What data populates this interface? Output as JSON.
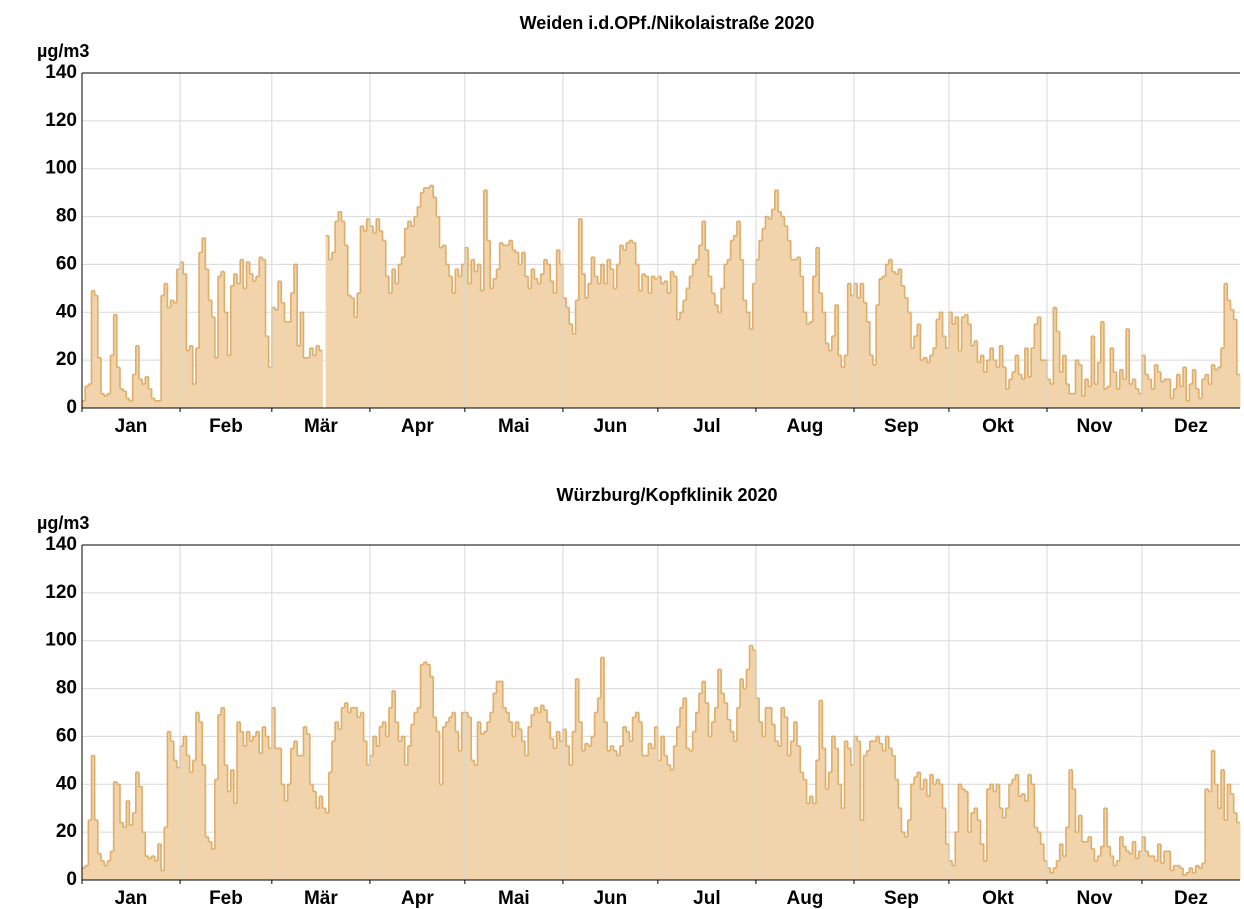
{
  "chart_data": [
    {
      "type": "step-area",
      "title": "Weiden i.d.OPf./Nikolaistraße 2020",
      "y_label": "µg/m3",
      "categories": [
        "Jan",
        "Feb",
        "Mär",
        "Apr",
        "Mai",
        "Jun",
        "Jul",
        "Aug",
        "Sep",
        "Okt",
        "Nov",
        "Dez"
      ],
      "values": [
        [
          3,
          9,
          10,
          49,
          47,
          21,
          6,
          5,
          6,
          22,
          39,
          17,
          8,
          7,
          4,
          3,
          14,
          26,
          12,
          10,
          13,
          8,
          4,
          3,
          3,
          47,
          52,
          42,
          45,
          44,
          58
        ],
        [
          61,
          56,
          24,
          26,
          10,
          25,
          65,
          71,
          58,
          45,
          38,
          21,
          55,
          57,
          40,
          22,
          51,
          56,
          52,
          62,
          50,
          61,
          56,
          53,
          55,
          63,
          62,
          30,
          17
        ],
        [
          42,
          41,
          53,
          44,
          36,
          36,
          48,
          60,
          26,
          40,
          21,
          21,
          25,
          22,
          26,
          24,
          null,
          72,
          62,
          65,
          78,
          82,
          78,
          68,
          47,
          46,
          38,
          48,
          76,
          74,
          79
        ],
        [
          76,
          73,
          79,
          74,
          70,
          55,
          48,
          58,
          52,
          60,
          63,
          75,
          78,
          76,
          80,
          84,
          90,
          92,
          92,
          93,
          88,
          80,
          67,
          68,
          60,
          55,
          48,
          58,
          55,
          60
        ],
        [
          67,
          52,
          62,
          57,
          60,
          49,
          91,
          70,
          50,
          54,
          58,
          69,
          68,
          68,
          70,
          66,
          65,
          60,
          65,
          55,
          50,
          58,
          54,
          52,
          56,
          62,
          60,
          53,
          48,
          66,
          60
        ],
        [
          46,
          42,
          35,
          31,
          45,
          79,
          56,
          46,
          52,
          63,
          55,
          52,
          60,
          52,
          62,
          58,
          50,
          60,
          68,
          66,
          69,
          70,
          69,
          60,
          49,
          56,
          55,
          48,
          55,
          54
        ],
        [
          55,
          52,
          53,
          48,
          57,
          55,
          37,
          40,
          45,
          50,
          55,
          60,
          62,
          68,
          78,
          66,
          55,
          48,
          43,
          40,
          50,
          60,
          62,
          70,
          72,
          78,
          62,
          45,
          40,
          33,
          52
        ],
        [
          62,
          70,
          75,
          80,
          79,
          83,
          91,
          82,
          80,
          76,
          70,
          62,
          62,
          63,
          55,
          40,
          35,
          36,
          55,
          67,
          48,
          40,
          27,
          24,
          30,
          43,
          22,
          17,
          22,
          52,
          47
        ],
        [
          52,
          46,
          52,
          44,
          36,
          22,
          18,
          43,
          54,
          55,
          60,
          62,
          57,
          56,
          58,
          51,
          46,
          40,
          25,
          30,
          35,
          20,
          21,
          19,
          22,
          25,
          37,
          40,
          30,
          25
        ],
        [
          40,
          35,
          38,
          24,
          38,
          39,
          35,
          26,
          28,
          19,
          22,
          15,
          20,
          25,
          20,
          17,
          26,
          17,
          8,
          12,
          15,
          22,
          14,
          12,
          25,
          13,
          25,
          35,
          38,
          20,
          20
        ],
        [
          12,
          10,
          42,
          32,
          15,
          22,
          10,
          6,
          6,
          20,
          18,
          5,
          12,
          9,
          30,
          10,
          19,
          36,
          8,
          9,
          25,
          15,
          8,
          16,
          12,
          33,
          10,
          12,
          8,
          6
        ],
        [
          22,
          14,
          12,
          8,
          18,
          15,
          11,
          12,
          12,
          4,
          8,
          14,
          9,
          17,
          3,
          10,
          16,
          8,
          4,
          12,
          14,
          10,
          18,
          16,
          17,
          25,
          52,
          45,
          41,
          37,
          14
        ]
      ],
      "color": "#f1d4ab",
      "line_color": "#dfad68",
      "ylim": [
        0,
        140
      ],
      "yticks": [
        0,
        20,
        40,
        60,
        80,
        100,
        120,
        140
      ],
      "grid": true
    },
    {
      "type": "step-area",
      "title": "Würzburg/Kopfklinik 2020",
      "y_label": "µg/m3",
      "categories": [
        "Jan",
        "Feb",
        "Mär",
        "Apr",
        "Mai",
        "Jun",
        "Jul",
        "Aug",
        "Sep",
        "Okt",
        "Nov",
        "Dez"
      ],
      "values": [
        [
          5,
          6,
          25,
          52,
          25,
          11,
          8,
          6,
          8,
          12,
          41,
          40,
          24,
          22,
          33,
          23,
          28,
          45,
          39,
          20,
          10,
          9,
          10,
          8,
          15,
          4,
          22,
          62,
          58,
          50,
          47
        ],
        [
          56,
          60,
          52,
          45,
          50,
          70,
          66,
          48,
          18,
          16,
          13,
          42,
          69,
          72,
          48,
          37,
          46,
          32,
          66,
          62,
          56,
          62,
          58,
          60,
          62,
          53,
          64,
          60,
          55
        ],
        [
          72,
          55,
          55,
          40,
          33,
          40,
          55,
          58,
          52,
          52,
          64,
          61,
          40,
          37,
          30,
          35,
          30,
          28,
          45,
          58,
          66,
          63,
          72,
          74,
          70,
          72,
          72,
          68,
          70,
          58,
          48
        ],
        [
          52,
          60,
          56,
          64,
          66,
          60,
          72,
          79,
          66,
          58,
          60,
          48,
          56,
          65,
          70,
          72,
          90,
          91,
          90,
          85,
          68,
          62,
          40,
          64,
          66,
          68,
          70,
          62,
          54,
          70
        ],
        [
          70,
          68,
          50,
          48,
          66,
          61,
          62,
          66,
          70,
          78,
          83,
          83,
          72,
          70,
          66,
          60,
          66,
          63,
          58,
          52,
          64,
          69,
          72,
          70,
          73,
          71,
          66,
          59,
          55,
          62,
          58
        ],
        [
          63,
          56,
          48,
          62,
          84,
          66,
          54,
          57,
          56,
          60,
          70,
          76,
          93,
          66,
          54,
          56,
          54,
          52,
          56,
          64,
          62,
          58,
          68,
          70,
          66,
          52,
          52,
          57,
          55,
          64
        ],
        [
          50,
          60,
          52,
          48,
          46,
          56,
          64,
          72,
          76,
          55,
          54,
          62,
          70,
          78,
          83,
          74,
          60,
          66,
          72,
          88,
          78,
          74,
          67,
          62,
          58,
          72,
          84,
          80,
          88,
          98,
          96
        ],
        [
          76,
          66,
          60,
          72,
          72,
          65,
          58,
          56,
          72,
          68,
          52,
          58,
          66,
          56,
          45,
          42,
          32,
          35,
          32,
          50,
          75,
          55,
          38,
          45,
          60,
          55,
          40,
          30,
          58,
          55,
          48
        ],
        [
          60,
          58,
          25,
          52,
          54,
          58,
          58,
          60,
          57,
          54,
          60,
          55,
          52,
          42,
          30,
          20,
          18,
          25,
          40,
          43,
          45,
          38,
          42,
          35,
          44,
          40,
          42,
          40,
          30,
          15
        ],
        [
          8,
          6,
          20,
          40,
          38,
          37,
          20,
          28,
          30,
          25,
          15,
          8,
          38,
          40,
          37,
          40,
          30,
          26,
          30,
          40,
          42,
          44,
          35,
          36,
          33,
          44,
          40,
          22,
          20,
          15,
          8
        ],
        [
          5,
          3,
          5,
          8,
          15,
          10,
          22,
          46,
          38,
          20,
          27,
          16,
          16,
          18,
          13,
          8,
          10,
          14,
          30,
          14,
          10,
          6,
          8,
          18,
          14,
          12,
          11,
          16,
          9,
          12
        ],
        [
          18,
          12,
          10,
          10,
          8,
          15,
          7,
          12,
          12,
          4,
          6,
          6,
          5,
          2,
          3,
          5,
          3,
          6,
          5,
          7,
          38,
          37,
          54,
          40,
          30,
          46,
          25,
          40,
          36,
          28,
          24
        ]
      ],
      "color": "#f1d4ab",
      "line_color": "#dfad68",
      "ylim": [
        0,
        140
      ],
      "yticks": [
        0,
        20,
        40,
        60,
        80,
        100,
        120,
        140
      ],
      "grid": true
    }
  ]
}
